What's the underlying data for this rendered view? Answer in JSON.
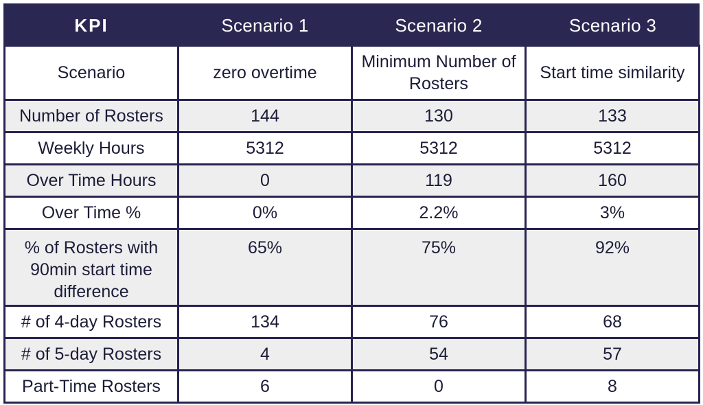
{
  "table": {
    "headers": [
      "KPI",
      "Scenario 1",
      "Scenario 2",
      "Scenario 3"
    ],
    "rows": [
      {
        "kpi": "Scenario",
        "values": [
          "zero overtime",
          "Minimum Number of Rosters",
          "Start time similarity"
        ]
      },
      {
        "kpi": "Number of Rosters",
        "values": [
          "144",
          "130",
          "133"
        ]
      },
      {
        "kpi": "Weekly Hours",
        "values": [
          "5312",
          "5312",
          "5312"
        ]
      },
      {
        "kpi": "Over Time Hours",
        "values": [
          "0",
          "119",
          "160"
        ]
      },
      {
        "kpi": "Over Time %",
        "values": [
          "0%",
          "2.2%",
          "3%"
        ]
      },
      {
        "kpi": "% of Rosters with 90min start time difference",
        "values": [
          "65%",
          "75%",
          "92%"
        ]
      },
      {
        "kpi": "# of 4-day Rosters",
        "values": [
          "134",
          "76",
          "68"
        ]
      },
      {
        "kpi": "# of 5-day Rosters",
        "values": [
          "4",
          "54",
          "57"
        ]
      },
      {
        "kpi": "Part-Time Rosters",
        "values": [
          "6",
          "0",
          "8"
        ]
      }
    ]
  },
  "colors": {
    "header_bg": "#2b2753",
    "header_text": "#ffffff",
    "border": "#27234e",
    "shaded_row": "#eeeeef"
  }
}
